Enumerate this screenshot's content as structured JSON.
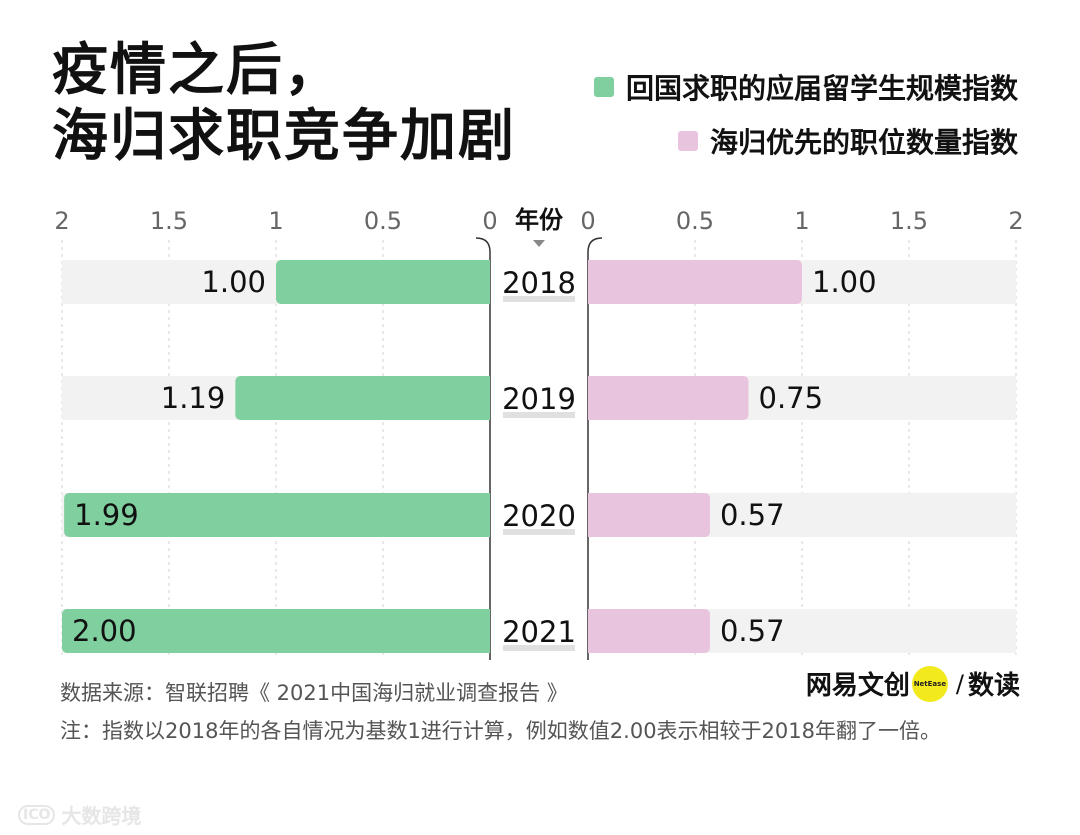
{
  "title": {
    "line1": "疫情之后，",
    "line2": "海归求职竞争加剧"
  },
  "legend": [
    {
      "label": "回国求职的应届留学生规模指数",
      "color": "#7fcf9f"
    },
    {
      "label": "海归优先的职位数量指数",
      "color": "#e9c4de"
    }
  ],
  "chart_data": {
    "type": "bar",
    "orientation": "horizontal-butterfly",
    "center_label": "年份",
    "categories": [
      "2018",
      "2019",
      "2020",
      "2021"
    ],
    "axis_ticks": [
      "0",
      "0.5",
      "1",
      "1.5",
      "2"
    ],
    "xlim": [
      0,
      2
    ],
    "series": [
      {
        "name": "回国求职的应届留学生规模指数",
        "side": "left",
        "color": "#7fcf9f",
        "values": [
          1.0,
          1.19,
          1.99,
          2.0
        ],
        "labels": [
          "1.00",
          "1.19",
          "1.99",
          "2.00"
        ]
      },
      {
        "name": "海归优先的职位数量指数",
        "side": "right",
        "color": "#e9c4de",
        "values": [
          1.0,
          0.75,
          0.57,
          0.57
        ],
        "labels": [
          "1.00",
          "0.75",
          "0.57",
          "0.57"
        ]
      }
    ]
  },
  "footer": {
    "source": "数据来源：智联招聘《 2021中国海归就业调查报告 》",
    "note": "注：指数以2018年的各自情况为基数1进行计算，例如数值2.00表示相较于2018年翻了一倍。"
  },
  "brand": {
    "cn": "网易文创",
    "dot": "NetEase",
    "slash": "/",
    "sub": "数读"
  },
  "watermark": {
    "logo": "ICO",
    "text": "大数跨境"
  }
}
